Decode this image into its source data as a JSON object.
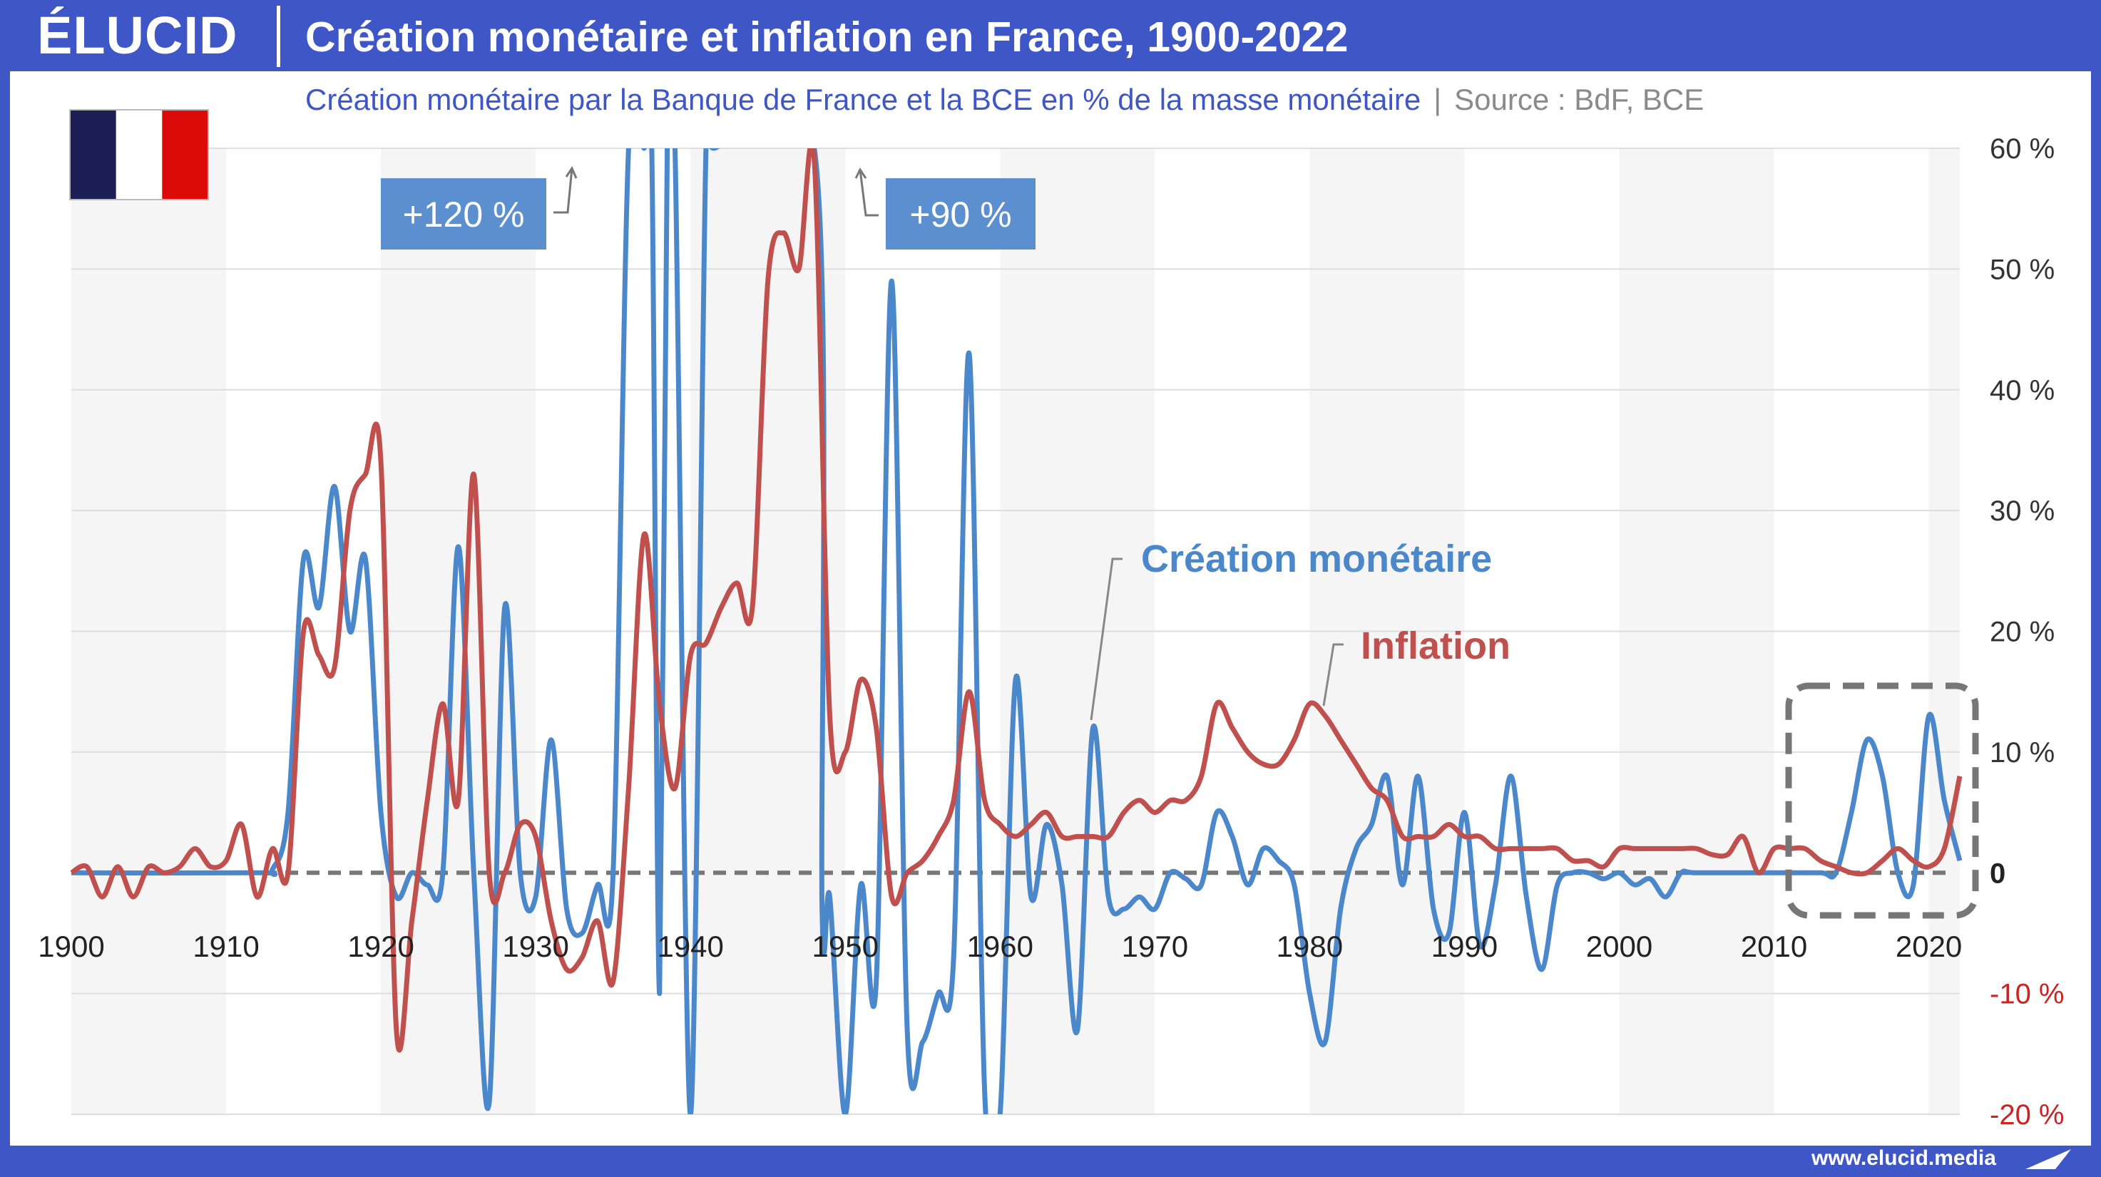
{
  "header": {
    "brand": "ÉLUCID",
    "title": "Création monétaire et inflation en France, 1900-2022",
    "subtitle": "Création monétaire par la Banque de France et la BCE en % de la masse monétaire",
    "separator": "|",
    "source": "Source : BdF, BCE"
  },
  "footer": {
    "url": "www.elucid.media"
  },
  "flag": {
    "colors": [
      "#1c1f55",
      "#ffffff",
      "#dd0a0a"
    ]
  },
  "colors": {
    "monetary": "#4b88cb",
    "inflation": "#c0504d",
    "zero_line": "#777777",
    "brand": "#3f57c6"
  },
  "chart_data": {
    "type": "line",
    "xlim": [
      1900,
      2022
    ],
    "ylim": [
      -20,
      60
    ],
    "x_ticks": [
      "1900",
      "1910",
      "1920",
      "1930",
      "1940",
      "1950",
      "1960",
      "1970",
      "1980",
      "1990",
      "2000",
      "2010",
      "2020"
    ],
    "y_ticks": [
      {
        "value": 60,
        "label": "60 %"
      },
      {
        "value": 50,
        "label": "50 %"
      },
      {
        "value": 40,
        "label": "40 %"
      },
      {
        "value": 30,
        "label": "30 %"
      },
      {
        "value": 20,
        "label": "20 %"
      },
      {
        "value": 10,
        "label": "10 %"
      },
      {
        "value": 0,
        "label": "0"
      },
      {
        "value": -10,
        "label": "-10 %"
      },
      {
        "value": -20,
        "label": "-20 %"
      }
    ],
    "annotations": [
      "+120 %",
      "+90 %"
    ],
    "series": [
      {
        "name": "Création monétaire",
        "points": [
          [
            1900,
            0
          ],
          [
            1912,
            0
          ],
          [
            1913,
            0.3
          ],
          [
            1914,
            5
          ],
          [
            1915,
            26
          ],
          [
            1916,
            22
          ],
          [
            1917,
            32
          ],
          [
            1918,
            20
          ],
          [
            1919,
            26
          ],
          [
            1920,
            5
          ],
          [
            1921,
            -2
          ],
          [
            1922,
            0
          ],
          [
            1923,
            -1
          ],
          [
            1924,
            0
          ],
          [
            1925,
            27
          ],
          [
            1926,
            0
          ],
          [
            1927,
            -19
          ],
          [
            1928,
            22
          ],
          [
            1929,
            0
          ],
          [
            1930,
            -2
          ],
          [
            1931,
            11
          ],
          [
            1932,
            -3
          ],
          [
            1933,
            -5
          ],
          [
            1934,
            -1
          ],
          [
            1935,
            0
          ],
          [
            1936,
            60
          ],
          [
            1937,
            60
          ],
          [
            1937.5,
            60
          ],
          [
            1938,
            -10
          ],
          [
            1938.5,
            60
          ],
          [
            1939,
            60
          ],
          [
            1940,
            -20
          ],
          [
            1941,
            60
          ],
          [
            1941.5,
            60
          ],
          [
            1948,
            60
          ],
          [
            1948.5,
            -3
          ],
          [
            1949,
            -2
          ],
          [
            1950,
            -20
          ],
          [
            1951,
            -1
          ],
          [
            1952,
            -9
          ],
          [
            1953,
            49
          ],
          [
            1954,
            -13
          ],
          [
            1955,
            -14
          ],
          [
            1956,
            -10
          ],
          [
            1957,
            -7
          ],
          [
            1958,
            43
          ],
          [
            1959,
            -18
          ],
          [
            1960,
            -20
          ],
          [
            1961,
            16
          ],
          [
            1962,
            -2
          ],
          [
            1963,
            4
          ],
          [
            1964,
            -1
          ],
          [
            1965,
            -13
          ],
          [
            1966,
            12
          ],
          [
            1967,
            -2
          ],
          [
            1968,
            -3
          ],
          [
            1969,
            -2
          ],
          [
            1970,
            -3
          ],
          [
            1971,
            0
          ],
          [
            1972,
            -0.5
          ],
          [
            1973,
            -1
          ],
          [
            1974,
            5
          ],
          [
            1975,
            3
          ],
          [
            1976,
            -1
          ],
          [
            1977,
            2
          ],
          [
            1978,
            1
          ],
          [
            1979,
            -1
          ],
          [
            1980,
            -10
          ],
          [
            1981,
            -14
          ],
          [
            1982,
            -3
          ],
          [
            1983,
            2
          ],
          [
            1984,
            4
          ],
          [
            1985,
            8
          ],
          [
            1986,
            -1
          ],
          [
            1987,
            8
          ],
          [
            1988,
            -3
          ],
          [
            1989,
            -5
          ],
          [
            1990,
            5
          ],
          [
            1991,
            -6
          ],
          [
            1992,
            -1
          ],
          [
            1993,
            8
          ],
          [
            1994,
            -2
          ],
          [
            1995,
            -8
          ],
          [
            1996,
            -1
          ],
          [
            1997,
            0
          ],
          [
            1998,
            0
          ],
          [
            1999,
            -0.5
          ],
          [
            2000,
            0
          ],
          [
            2001,
            -1
          ],
          [
            2002,
            -0.5
          ],
          [
            2003,
            -2
          ],
          [
            2004,
            0
          ],
          [
            2005,
            0
          ],
          [
            2010,
            0
          ],
          [
            2013,
            0
          ],
          [
            2014,
            0
          ],
          [
            2015,
            5
          ],
          [
            2016,
            11
          ],
          [
            2017,
            8
          ],
          [
            2018,
            0
          ],
          [
            2019,
            -1
          ],
          [
            2020,
            13
          ],
          [
            2021,
            6
          ],
          [
            2022,
            1
          ]
        ]
      },
      {
        "name": "Inflation",
        "points": [
          [
            1900,
            0
          ],
          [
            1901,
            0.5
          ],
          [
            1902,
            -2
          ],
          [
            1903,
            0.5
          ],
          [
            1904,
            -2
          ],
          [
            1905,
            0.5
          ],
          [
            1906,
            0
          ],
          [
            1907,
            0.5
          ],
          [
            1908,
            2
          ],
          [
            1909,
            0.5
          ],
          [
            1910,
            1
          ],
          [
            1911,
            4
          ],
          [
            1912,
            -2
          ],
          [
            1913,
            2
          ],
          [
            1914,
            0
          ],
          [
            1915,
            20
          ],
          [
            1916,
            18
          ],
          [
            1917,
            17
          ],
          [
            1918,
            30
          ],
          [
            1919,
            33
          ],
          [
            1920,
            34
          ],
          [
            1921,
            -13
          ],
          [
            1922,
            -4
          ],
          [
            1923,
            6
          ],
          [
            1924,
            14
          ],
          [
            1925,
            6
          ],
          [
            1926,
            33
          ],
          [
            1927,
            0
          ],
          [
            1928,
            0
          ],
          [
            1929,
            4
          ],
          [
            1930,
            3
          ],
          [
            1931,
            -4
          ],
          [
            1932,
            -8
          ],
          [
            1933,
            -7
          ],
          [
            1934,
            -4
          ],
          [
            1935,
            -9
          ],
          [
            1936,
            7
          ],
          [
            1937,
            28
          ],
          [
            1938,
            14
          ],
          [
            1939,
            7
          ],
          [
            1940,
            18
          ],
          [
            1941,
            19
          ],
          [
            1942,
            22
          ],
          [
            1943,
            24
          ],
          [
            1944,
            22
          ],
          [
            1945,
            49
          ],
          [
            1946,
            53
          ],
          [
            1947,
            50
          ],
          [
            1948,
            59
          ],
          [
            1949,
            13
          ],
          [
            1950,
            10
          ],
          [
            1951,
            16
          ],
          [
            1952,
            12
          ],
          [
            1953,
            -2
          ],
          [
            1954,
            0
          ],
          [
            1955,
            1
          ],
          [
            1956,
            3
          ],
          [
            1957,
            6
          ],
          [
            1958,
            15
          ],
          [
            1959,
            6
          ],
          [
            1960,
            4
          ],
          [
            1961,
            3
          ],
          [
            1962,
            4
          ],
          [
            1963,
            5
          ],
          [
            1964,
            3
          ],
          [
            1965,
            3
          ],
          [
            1966,
            3
          ],
          [
            1967,
            3
          ],
          [
            1968,
            5
          ],
          [
            1969,
            6
          ],
          [
            1970,
            5
          ],
          [
            1971,
            6
          ],
          [
            1972,
            6
          ],
          [
            1973,
            8
          ],
          [
            1974,
            14
          ],
          [
            1975,
            12
          ],
          [
            1976,
            10
          ],
          [
            1977,
            9
          ],
          [
            1978,
            9
          ],
          [
            1979,
            11
          ],
          [
            1980,
            14
          ],
          [
            1981,
            13
          ],
          [
            1982,
            11
          ],
          [
            1983,
            9
          ],
          [
            1984,
            7
          ],
          [
            1985,
            6
          ],
          [
            1986,
            3
          ],
          [
            1987,
            3
          ],
          [
            1988,
            3
          ],
          [
            1989,
            4
          ],
          [
            1990,
            3
          ],
          [
            1991,
            3
          ],
          [
            1992,
            2
          ],
          [
            1993,
            2
          ],
          [
            1994,
            2
          ],
          [
            1995,
            2
          ],
          [
            1996,
            2
          ],
          [
            1997,
            1
          ],
          [
            1998,
            1
          ],
          [
            1999,
            0.5
          ],
          [
            2000,
            2
          ],
          [
            2001,
            2
          ],
          [
            2002,
            2
          ],
          [
            2003,
            2
          ],
          [
            2004,
            2
          ],
          [
            2005,
            2
          ],
          [
            2006,
            1.5
          ],
          [
            2007,
            1.5
          ],
          [
            2008,
            3
          ],
          [
            2009,
            0
          ],
          [
            2010,
            2
          ],
          [
            2011,
            2
          ],
          [
            2012,
            2
          ],
          [
            2013,
            1
          ],
          [
            2014,
            0.5
          ],
          [
            2015,
            0
          ],
          [
            2016,
            0
          ],
          [
            2017,
            1
          ],
          [
            2018,
            2
          ],
          [
            2019,
            1
          ],
          [
            2020,
            0.5
          ],
          [
            2021,
            2
          ],
          [
            2022,
            8
          ]
        ]
      }
    ]
  }
}
